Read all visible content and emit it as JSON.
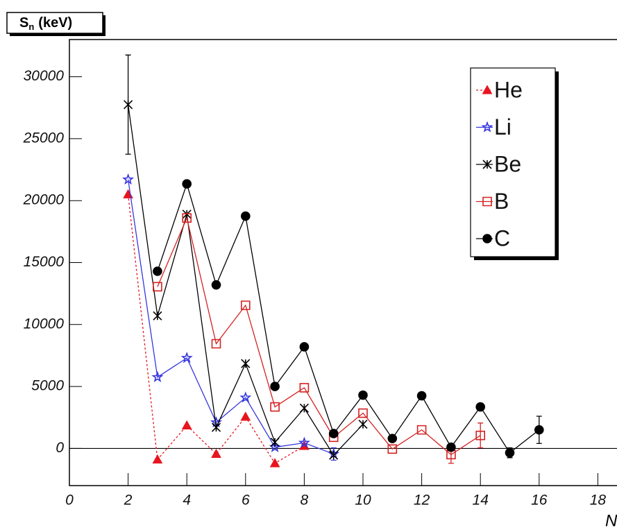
{
  "chart_data": {
    "type": "line",
    "y_label": {
      "symbol": "S",
      "subscript": "n",
      "unit": "(keV)"
    },
    "x_label": "N",
    "xlim": [
      0,
      20
    ],
    "ylim": [
      -3000,
      33000
    ],
    "xticks": [
      0,
      2,
      4,
      6,
      8,
      10,
      12,
      14,
      16,
      18
    ],
    "yticks": [
      0,
      5000,
      10000,
      15000,
      20000,
      25000,
      30000
    ],
    "legend": "upper right",
    "series": [
      {
        "name": "He",
        "color": "#e8141e",
        "marker": "triangle",
        "line_style": "dotted",
        "x": [
          2,
          3,
          4,
          5,
          6,
          7,
          8
        ],
        "values": [
          20500,
          -900,
          1850,
          -450,
          2550,
          -1200,
          200
        ],
        "errors": [
          null,
          null,
          null,
          null,
          null,
          null,
          null
        ]
      },
      {
        "name": "Li",
        "color": "#3535e0",
        "marker": "star",
        "line_style": "solid",
        "x": [
          2,
          3,
          4,
          5,
          6,
          7,
          8,
          9
        ],
        "values": [
          21700,
          5750,
          7300,
          2100,
          4100,
          100,
          450,
          -450
        ],
        "errors": [
          null,
          null,
          null,
          null,
          null,
          null,
          null,
          500
        ]
      },
      {
        "name": "Be",
        "color": "#000000",
        "marker": "x",
        "line_style": "solid",
        "x": [
          2,
          3,
          4,
          5,
          6,
          7,
          8,
          9,
          10
        ],
        "values": [
          27750,
          10700,
          18900,
          1700,
          6850,
          500,
          3250,
          -550,
          1950
        ],
        "errors": [
          4000,
          null,
          null,
          null,
          null,
          null,
          null,
          null,
          null
        ]
      },
      {
        "name": "B",
        "color": "#d42020",
        "marker": "square",
        "line_style": "solid",
        "x": [
          3,
          4,
          5,
          6,
          7,
          8,
          9,
          10,
          11,
          12,
          13,
          14
        ],
        "values": [
          13050,
          18600,
          8450,
          11550,
          3350,
          4900,
          900,
          2850,
          -50,
          1500,
          -500,
          1050
        ],
        "errors": [
          null,
          null,
          null,
          null,
          null,
          null,
          null,
          null,
          null,
          null,
          700,
          1000
        ]
      },
      {
        "name": "C",
        "color": "#000000",
        "marker": "circle",
        "line_style": "solid",
        "x": [
          3,
          4,
          5,
          6,
          7,
          8,
          9,
          10,
          11,
          12,
          13,
          14,
          15,
          16
        ],
        "values": [
          14300,
          21350,
          13200,
          18750,
          5000,
          8200,
          1200,
          4300,
          800,
          4250,
          100,
          3350,
          -350,
          1500
        ],
        "errors": [
          null,
          null,
          null,
          null,
          null,
          null,
          null,
          null,
          null,
          null,
          null,
          null,
          400,
          1100
        ]
      }
    ]
  }
}
